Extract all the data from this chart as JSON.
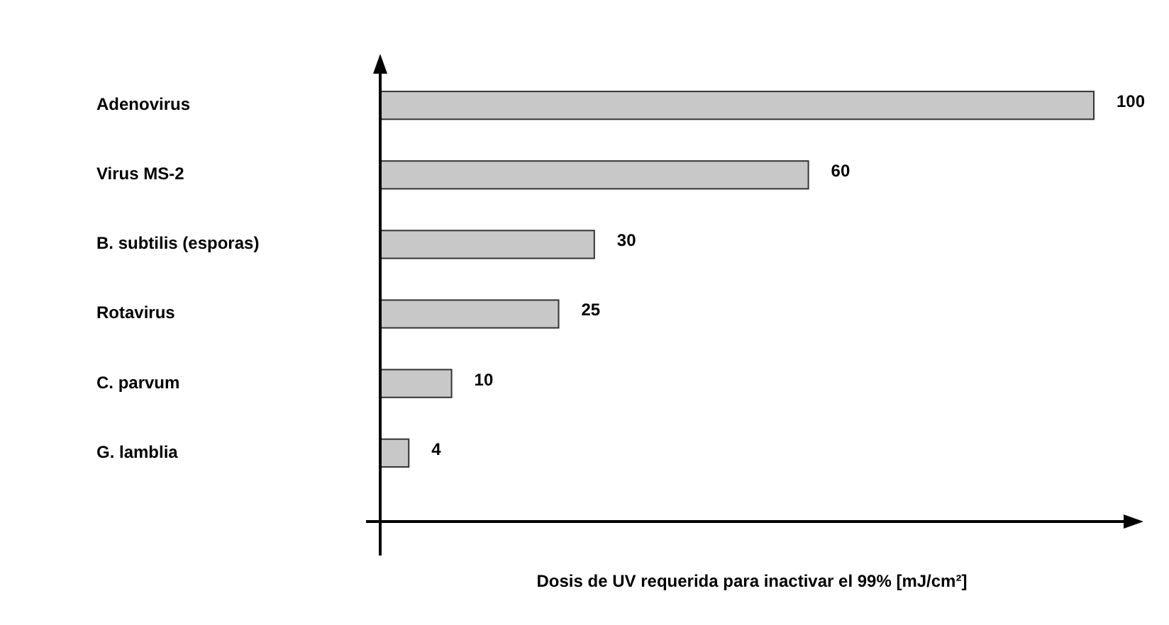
{
  "chart_data": {
    "type": "bar",
    "orientation": "horizontal",
    "xlabel": "Dosis de UV requerida para inactivar el 99% [mJ/cm²]",
    "categories": [
      "Adenovirus",
      "Virus MS-2",
      "B. subtilis (esporas)",
      "Rotavirus",
      "C. parvum",
      "G. lamblia"
    ],
    "values": [
      100,
      60,
      30,
      25,
      10,
      4
    ],
    "color": "#c8c8c8",
    "data_labels": true
  }
}
